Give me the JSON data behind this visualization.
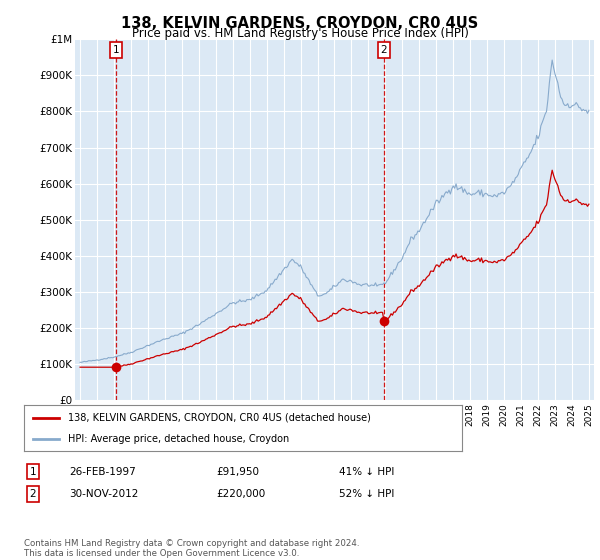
{
  "title1": "138, KELVIN GARDENS, CROYDON, CR0 4US",
  "title2": "Price paid vs. HM Land Registry's House Price Index (HPI)",
  "legend_property": "138, KELVIN GARDENS, CROYDON, CR0 4US (detached house)",
  "legend_hpi": "HPI: Average price, detached house, Croydon",
  "footnote": "Contains HM Land Registry data © Crown copyright and database right 2024.\nThis data is licensed under the Open Government Licence v3.0.",
  "sale1_date": "26-FEB-1997",
  "sale1_price": 91950,
  "sale1_label": "41% ↓ HPI",
  "sale2_date": "30-NOV-2012",
  "sale2_price": 220000,
  "sale2_label": "52% ↓ HPI",
  "sale1_x": 1997.12,
  "sale2_x": 2012.92,
  "ylim_max": 1000000,
  "bg_color": "#dce9f5",
  "line_color_property": "#cc0000",
  "line_color_hpi": "#88aacc",
  "marker_color": "#cc0000",
  "vline_color": "#cc0000",
  "grid_color": "#ffffff"
}
